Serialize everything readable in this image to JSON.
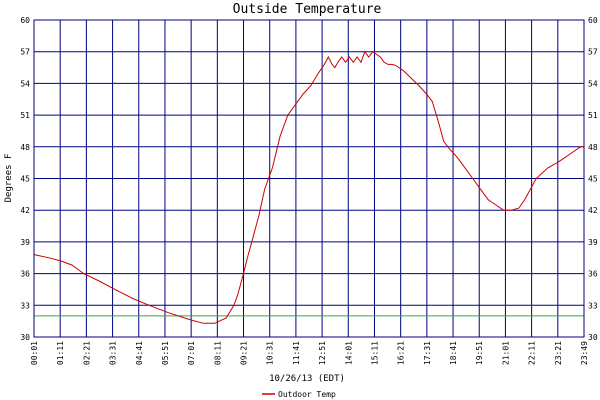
{
  "chart_data": {
    "type": "line",
    "title": "Outside Temperature",
    "xlabel": "10/26/13 (EDT)",
    "ylabel": "Degrees F",
    "ylim": [
      30,
      60
    ],
    "yticks": [
      30,
      33,
      36,
      39,
      42,
      45,
      48,
      51,
      54,
      57,
      60
    ],
    "xticks": [
      "00:01",
      "01:11",
      "02:21",
      "03:31",
      "04:41",
      "05:51",
      "07:01",
      "08:11",
      "09:21",
      "10:31",
      "11:41",
      "12:51",
      "14:01",
      "15:11",
      "16:21",
      "17:31",
      "18:41",
      "19:51",
      "21:01",
      "22:11",
      "23:21",
      "23:49"
    ],
    "grid": true,
    "legend_position": "bottom",
    "reference_line": {
      "value": 32,
      "color": "#33aa33"
    },
    "colors": {
      "background": "#ffffff",
      "grid": "#000080",
      "series": "#cc0000",
      "reference": "#33aa33"
    },
    "series": [
      {
        "name": "Outdoor Temp",
        "x_minutes": [
          1,
          40,
          70,
          100,
          130,
          170,
          211,
          260,
          300,
          350,
          400,
          440,
          470,
          500,
          520,
          530,
          545,
          555,
          570,
          585,
          600,
          620,
          640,
          660,
          680,
          700,
          720,
          740,
          755,
          765,
          775,
          782,
          790,
          800,
          810,
          820,
          830,
          840,
          850,
          860,
          870,
          880,
          900,
          910,
          920,
          930,
          940,
          960,
          980,
          1000,
          1020,
          1035,
          1050,
          1065,
          1080,
          1100,
          1110,
          1120,
          1140,
          1160,
          1180,
          1200,
          1220,
          1240,
          1260,
          1275,
          1290,
          1305,
          1320,
          1335,
          1345,
          1360,
          1380,
          1400,
          1420,
          1429
        ],
        "values": [
          37.8,
          37.5,
          37.2,
          36.8,
          36.0,
          35.3,
          34.5,
          33.6,
          33.0,
          32.3,
          31.7,
          31.3,
          31.3,
          31.8,
          33.0,
          34.0,
          36.0,
          37.5,
          39.5,
          41.5,
          44.0,
          46.0,
          49.0,
          51.0,
          52.0,
          53.0,
          53.8,
          55.0,
          55.8,
          56.5,
          55.8,
          55.5,
          56.0,
          56.5,
          56.0,
          56.5,
          56.0,
          56.5,
          56.0,
          57.0,
          56.5,
          57.0,
          56.5,
          56.0,
          55.8,
          55.8,
          55.7,
          55.2,
          54.5,
          53.8,
          53.0,
          52.3,
          50.5,
          48.5,
          47.8,
          47.0,
          46.5,
          46.0,
          45.0,
          44.0,
          43.0,
          42.5,
          42.0,
          42.0,
          42.2,
          43.0,
          44.0,
          45.0,
          45.5,
          46.0,
          46.2,
          46.5,
          47.0,
          47.5,
          48.0,
          48.0
        ]
      }
    ]
  }
}
